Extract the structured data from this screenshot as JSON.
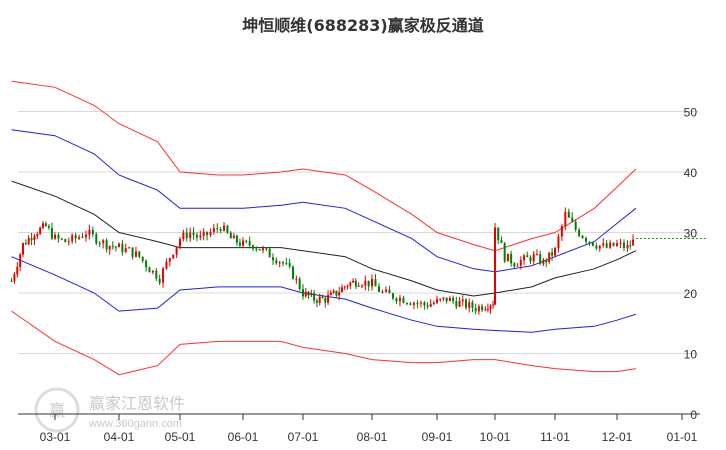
{
  "chart_data": {
    "type": "candlestick",
    "title": "坤恒顺维(688283)赢家极反通道",
    "x_ticks": [
      "03-01",
      "04-01",
      "05-01",
      "06-01",
      "07-01",
      "08-01",
      "09-01",
      "10-01",
      "11-01",
      "12-01",
      "01-01"
    ],
    "y_ticks": [
      0,
      10,
      20,
      30,
      40,
      50
    ],
    "ylim": [
      0,
      55
    ],
    "grid": "horizontal",
    "last_price": 29,
    "colors": {
      "up": "#e60000",
      "down": "#008000",
      "outer_band": "#ff3030",
      "inner_band": "#2020e0",
      "mid_line": "#222222",
      "price_ref": "#009900",
      "grid": "#d9d9d9"
    },
    "series": [
      {
        "role": "outer-upper",
        "x": [
          "02-10",
          "03-01",
          "03-20",
          "04-01",
          "04-20",
          "05-01",
          "05-20",
          "06-01",
          "06-20",
          "07-01",
          "07-20",
          "08-01",
          "08-20",
          "09-01",
          "09-20",
          "10-01",
          "10-20",
          "11-01",
          "11-20",
          "12-01",
          "12-10"
        ],
        "values": [
          55,
          54,
          51,
          48,
          45,
          40,
          39.5,
          39.5,
          40,
          40.5,
          39.5,
          37,
          33,
          30,
          28,
          27,
          29,
          30,
          34,
          37.5,
          40.5
        ]
      },
      {
        "role": "inner-upper",
        "x": [
          "02-10",
          "03-01",
          "03-20",
          "04-01",
          "04-20",
          "05-01",
          "05-20",
          "06-01",
          "06-20",
          "07-01",
          "07-20",
          "08-01",
          "08-20",
          "09-01",
          "09-20",
          "10-01",
          "10-20",
          "11-01",
          "11-20",
          "12-01",
          "12-10"
        ],
        "values": [
          47,
          46,
          43,
          39.5,
          37,
          34,
          34,
          34,
          34.5,
          35,
          34,
          32,
          29,
          26,
          24,
          23.5,
          24.5,
          26,
          28.5,
          31.5,
          34
        ]
      },
      {
        "role": "mid",
        "x": [
          "02-10",
          "03-01",
          "03-20",
          "04-01",
          "04-20",
          "05-01",
          "05-20",
          "06-01",
          "06-20",
          "07-01",
          "07-20",
          "08-01",
          "08-20",
          "09-01",
          "09-20",
          "10-01",
          "10-20",
          "11-01",
          "11-20",
          "12-01",
          "12-10"
        ],
        "values": [
          38.5,
          36,
          33,
          30,
          28.5,
          27.5,
          27.5,
          27.5,
          27.5,
          27,
          26,
          24,
          22,
          20.5,
          19.5,
          20,
          21,
          22.5,
          24,
          25.5,
          27
        ]
      },
      {
        "role": "inner-lower",
        "x": [
          "02-10",
          "03-01",
          "03-20",
          "04-01",
          "04-20",
          "05-01",
          "05-20",
          "06-01",
          "06-20",
          "07-01",
          "07-20",
          "08-01",
          "08-20",
          "09-01",
          "09-20",
          "10-01",
          "10-20",
          "11-01",
          "11-20",
          "12-01",
          "12-10"
        ],
        "values": [
          26,
          23,
          20,
          17,
          17.5,
          20.5,
          21,
          21,
          21,
          20,
          19,
          17.5,
          15.5,
          14.5,
          14,
          13.8,
          13.5,
          14,
          14.5,
          15.5,
          16.5
        ]
      },
      {
        "role": "outer-lower",
        "x": [
          "02-10",
          "03-01",
          "03-20",
          "04-01",
          "04-20",
          "05-01",
          "05-20",
          "06-01",
          "06-20",
          "07-01",
          "07-20",
          "08-01",
          "08-20",
          "09-01",
          "09-20",
          "10-01",
          "10-20",
          "11-01",
          "11-20",
          "12-01",
          "12-10"
        ],
        "values": [
          17,
          12,
          9,
          6.5,
          8,
          11.5,
          12,
          12,
          12,
          11,
          10,
          9,
          8.5,
          8.5,
          9,
          9,
          8,
          7.5,
          7,
          7,
          7.5
        ]
      },
      {
        "role": "close",
        "x": [
          "02-10",
          "02-15",
          "02-20",
          "02-25",
          "03-01",
          "03-06",
          "03-11",
          "03-16",
          "03-21",
          "03-26",
          "04-01",
          "04-06",
          "04-11",
          "04-16",
          "04-21",
          "04-26",
          "05-01",
          "05-06",
          "05-11",
          "05-16",
          "05-21",
          "05-26",
          "06-01",
          "06-06",
          "06-11",
          "06-16",
          "06-21",
          "06-26",
          "07-01",
          "07-06",
          "07-11",
          "07-16",
          "07-21",
          "07-26",
          "08-01",
          "08-06",
          "08-11",
          "08-16",
          "08-21",
          "08-26",
          "09-01",
          "09-06",
          "09-11",
          "09-16",
          "09-21",
          "09-26",
          "09-30",
          "10-01",
          "10-06",
          "10-11",
          "10-16",
          "10-21",
          "10-26",
          "11-01",
          "11-06",
          "11-11",
          "11-16",
          "11-21",
          "11-26",
          "12-01",
          "12-06",
          "12-10"
        ],
        "values": [
          22,
          28,
          30,
          31,
          29,
          28.5,
          29,
          30,
          29,
          28,
          27.5,
          27,
          26,
          24,
          22.5,
          26,
          29,
          30,
          29,
          30,
          31,
          29,
          28,
          28,
          27,
          26,
          25,
          23,
          20,
          19,
          19,
          20,
          21.5,
          22,
          21.5,
          20,
          19.5,
          19,
          18.5,
          18,
          18.5,
          19,
          18.5,
          18,
          17.5,
          18,
          18.5,
          31,
          26,
          25,
          25.5,
          26,
          25,
          27,
          33,
          30.5,
          29,
          28,
          27.5,
          28,
          27.5,
          29
        ]
      }
    ]
  },
  "watermark": {
    "text": "赢家江恩软件",
    "sub": "www.360gann.com",
    "badge": "赢"
  }
}
